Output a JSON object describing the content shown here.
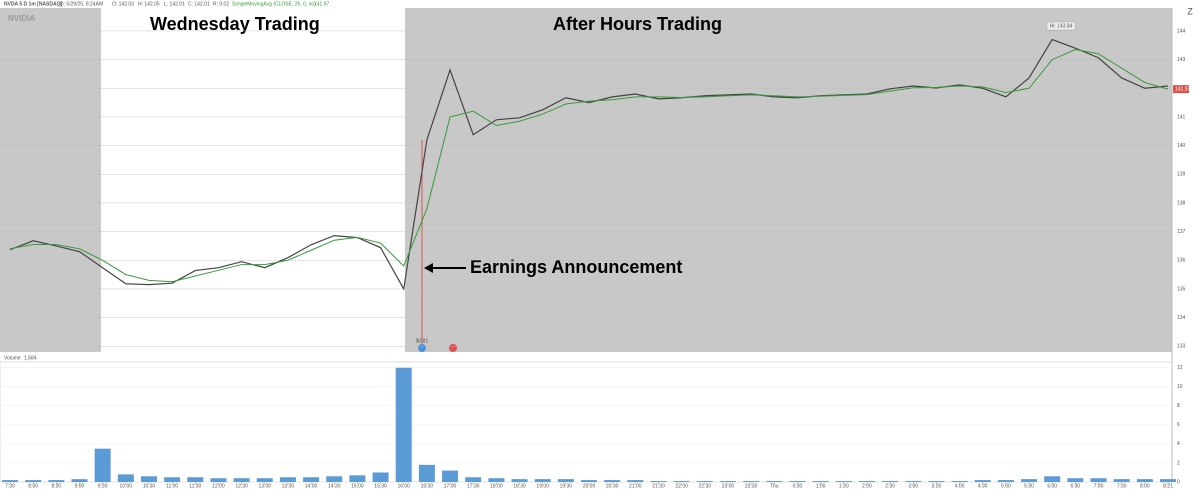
{
  "header": {
    "symbol": "NVDA 5 D 1m [NASDAQ]",
    "date": "D: 5/29/25, 8:24AM",
    "open": "O: 142.03",
    "high": "H: 142.05",
    "low": "L: 142.01",
    "close": "C: 142.01",
    "range": "R: 0.02",
    "study": "SimpleMovingAvg (CLOSE, 26, 0, no)",
    "study_value": "141.97"
  },
  "watermark": "NVIDIA",
  "chart_data": [
    {
      "type": "line",
      "annotations": {
        "session": "Wednesday Trading",
        "after_hours": "After Hours Trading",
        "event": "Earnings Announcement",
        "high_label": "Hi: 143.84",
        "earnings_value": "$0.81"
      },
      "last_price": 141.97,
      "categories": [
        "7:30",
        "8:00",
        "8:30",
        "9:00",
        "9:30",
        "10:00",
        "10:30",
        "11:00",
        "11:30",
        "12:00",
        "12:30",
        "13:00",
        "13:30",
        "14:00",
        "14:30",
        "15:00",
        "15:30",
        "16:00",
        "16:30",
        "17:00",
        "17:30",
        "18:00",
        "18:30",
        "19:00",
        "19:30",
        "20:00",
        "20:30",
        "21:00",
        "21:30",
        "22:00",
        "22:30",
        "23:00",
        "23:30",
        "Thu",
        "0:30",
        "1:00",
        "1:30",
        "2:00",
        "2:30",
        "3:00",
        "3:30",
        "4:00",
        "4:30",
        "5:00",
        "5:30",
        "6:00",
        "6:30",
        "7:00",
        "7:30",
        "8:00",
        "8:21"
      ],
      "series": [
        {
          "name": "Price",
          "color": "#444444",
          "values": [
            136.37,
            136.68,
            136.5,
            136.3,
            135.74,
            135.18,
            135.15,
            135.2,
            135.64,
            135.74,
            135.95,
            135.74,
            136.09,
            136.54,
            136.86,
            136.79,
            136.44,
            135.0,
            140.2,
            142.64,
            140.38,
            140.9,
            140.97,
            141.25,
            141.67,
            141.5,
            141.7,
            141.8,
            141.63,
            141.67,
            141.74,
            141.77,
            141.8,
            141.7,
            141.67,
            141.74,
            141.77,
            141.8,
            141.98,
            142.08,
            142.01,
            142.12,
            142.0,
            141.7,
            142.36,
            143.7,
            143.4,
            143.06,
            142.36,
            142.0,
            142.08
          ]
        },
        {
          "name": "SimpleMovingAvg",
          "color": "#3a9a3a",
          "values": [
            136.4,
            136.55,
            136.55,
            136.4,
            136.0,
            135.5,
            135.3,
            135.25,
            135.45,
            135.65,
            135.85,
            135.85,
            136.0,
            136.35,
            136.7,
            136.8,
            136.6,
            135.8,
            137.8,
            141.0,
            141.2,
            140.7,
            140.85,
            141.1,
            141.45,
            141.55,
            141.6,
            141.7,
            141.7,
            141.68,
            141.7,
            141.74,
            141.77,
            141.74,
            141.7,
            141.72,
            141.75,
            141.78,
            141.9,
            142.02,
            142.03,
            142.08,
            142.05,
            141.85,
            142.0,
            143.0,
            143.35,
            143.2,
            142.7,
            142.2,
            141.97
          ]
        }
      ],
      "ylim": [
        132.8,
        144.8
      ],
      "yticks": [
        133,
        134,
        135,
        136,
        137,
        138,
        139,
        140,
        141,
        142,
        143,
        144
      ]
    },
    {
      "type": "bar",
      "title": "Volume",
      "value_label": "1,584",
      "color": "#5b9bd5",
      "values": [
        0.2,
        0.2,
        0.2,
        0.3,
        3.5,
        0.8,
        0.6,
        0.5,
        0.5,
        0.4,
        0.4,
        0.4,
        0.5,
        0.5,
        0.6,
        0.7,
        1.0,
        12.0,
        1.8,
        1.2,
        0.5,
        0.4,
        0.3,
        0.3,
        0.3,
        0.2,
        0.2,
        0.2,
        0.1,
        0.1,
        0.1,
        0.1,
        0.1,
        0.1,
        0.1,
        0.1,
        0.1,
        0.1,
        0.1,
        0.1,
        0.1,
        0.1,
        0.2,
        0.2,
        0.3,
        0.6,
        0.4,
        0.4,
        0.3,
        0.3,
        0.3
      ],
      "ylim": [
        0,
        12.6
      ],
      "yticks": [
        0,
        2,
        4,
        6,
        8,
        10,
        12
      ]
    }
  ]
}
